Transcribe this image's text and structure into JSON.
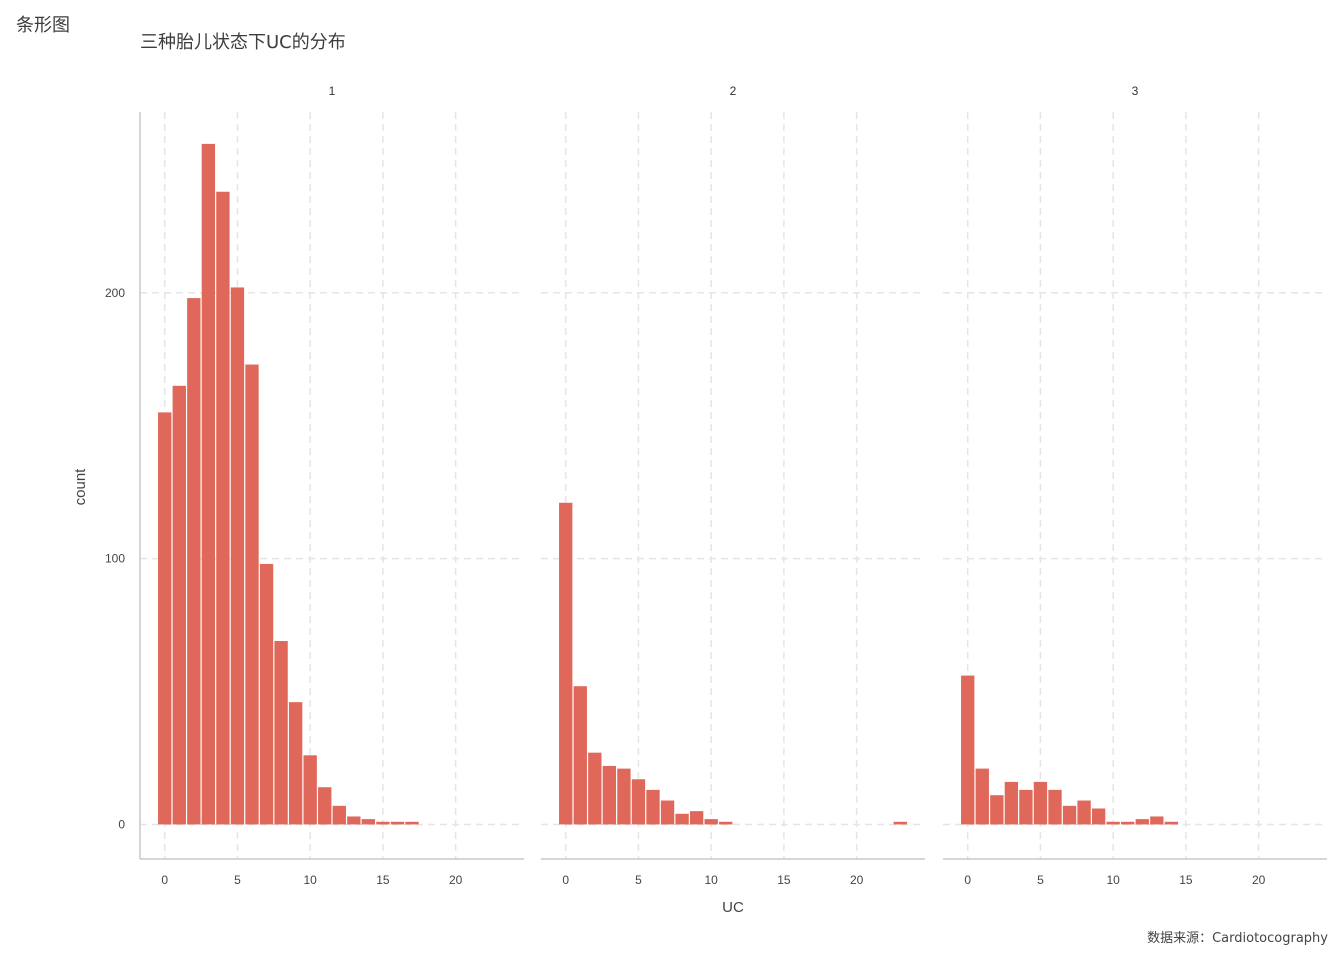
{
  "corner_title": "条形图",
  "caption": "数据来源：Cardiotocography",
  "colors": {
    "bar": "#e0685a",
    "grid": "#e5e5e5",
    "axis": "#c8c8c8"
  },
  "chart_data": {
    "type": "bar",
    "title": "三种胎儿状态下UC的分布",
    "xlabel": "UC",
    "ylabel": "count",
    "xlim": [
      -1.7,
      24.7
    ],
    "ylim": [
      -13,
      268
    ],
    "x_ticks": [
      0,
      5,
      10,
      15,
      20
    ],
    "y_ticks": [
      0,
      100,
      200
    ],
    "grid": true,
    "legend": "none",
    "bin_width": 1,
    "facets": [
      {
        "label": "1",
        "x": [
          0,
          1,
          2,
          3,
          4,
          5,
          6,
          7,
          8,
          9,
          10,
          11,
          12,
          13,
          14,
          15,
          16,
          17
        ],
        "counts": [
          155,
          165,
          198,
          256,
          238,
          202,
          173,
          98,
          69,
          46,
          26,
          14,
          7,
          3,
          2,
          1,
          1,
          1
        ]
      },
      {
        "label": "2",
        "x": [
          0,
          1,
          2,
          3,
          4,
          5,
          6,
          7,
          8,
          9,
          10,
          11,
          23
        ],
        "counts": [
          121,
          52,
          27,
          22,
          21,
          17,
          13,
          9,
          4,
          5,
          2,
          1,
          1
        ]
      },
      {
        "label": "3",
        "x": [
          0,
          1,
          2,
          3,
          4,
          5,
          6,
          7,
          8,
          9,
          10,
          11,
          12,
          13,
          14
        ],
        "counts": [
          56,
          21,
          11,
          16,
          13,
          16,
          13,
          7,
          9,
          6,
          1,
          1,
          2,
          3,
          1
        ]
      }
    ]
  }
}
